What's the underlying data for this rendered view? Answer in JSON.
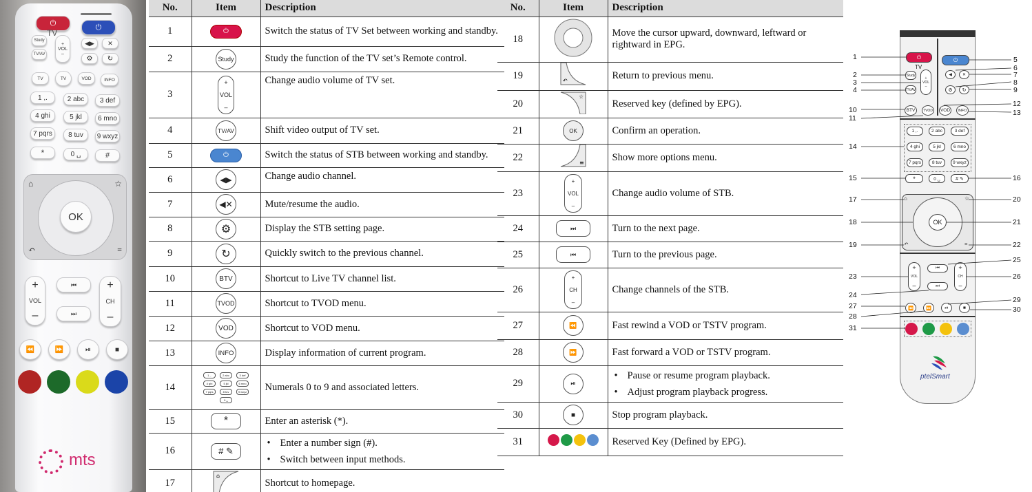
{
  "headers": {
    "no": "No.",
    "item": "Item",
    "description": "Description"
  },
  "photo": {
    "tv_label": "TV",
    "study": "Study",
    "tvav": "TV/AV",
    "vol": "VOL",
    "ch": "CH",
    "ok": "OK",
    "row_top": [
      "TV",
      "TV",
      "VOD",
      "INFO"
    ],
    "keys": [
      "1 ,.",
      "2 abc",
      "3 def",
      "4 ghi",
      "5 jkl",
      "6 mno",
      "7 pqrs",
      "8 tuv",
      "9 wxyz",
      "*",
      "0 ␣",
      "#"
    ],
    "brand": "mts"
  },
  "rows_left": [
    {
      "no": "1",
      "text": "Switch the status of TV Set between working and standby."
    },
    {
      "no": "2",
      "item": "Study",
      "text": "Study the function of the TV set’s Remote control."
    },
    {
      "no": "3",
      "item": "VOL",
      "text": "Change audio volume of TV set."
    },
    {
      "no": "4",
      "item": "TV/AV",
      "text": "Shift video output of TV set."
    },
    {
      "no": "5",
      "text": "Switch the status of STB between working and standby."
    },
    {
      "no": "6",
      "text": "Change audio channel."
    },
    {
      "no": "7",
      "text": "Mute/resume the audio."
    },
    {
      "no": "8",
      "text": "Display the STB setting page."
    },
    {
      "no": "9",
      "text": "Quickly switch to the previous channel."
    },
    {
      "no": "10",
      "item": "BTV",
      "text": "Shortcut to Live TV channel list."
    },
    {
      "no": "11",
      "item": "TVOD",
      "text": "Shortcut to TVOD menu."
    },
    {
      "no": "12",
      "item": "VOD",
      "text": "Shortcut to VOD menu."
    },
    {
      "no": "13",
      "item": "INFO",
      "text": "Display information of current program."
    },
    {
      "no": "14",
      "text": "Numerals 0 to 9 and associated letters."
    },
    {
      "no": "15",
      "item": "*",
      "text": "Enter an asterisk (*)."
    },
    {
      "no": "16",
      "item": "#",
      "bullets": [
        "Enter a number sign (#).",
        "Switch between input methods."
      ]
    },
    {
      "no": "17",
      "text": "Shortcut to homepage."
    }
  ],
  "rows_right": [
    {
      "no": "18",
      "text": "Move the cursor upward, downward, leftward or rightward in EPG."
    },
    {
      "no": "19",
      "text": "Return to previous menu."
    },
    {
      "no": "20",
      "text": "Reserved key (defined by EPG)."
    },
    {
      "no": "21",
      "item": "OK",
      "text": "Confirm an operation."
    },
    {
      "no": "22",
      "text": "Show more options menu."
    },
    {
      "no": "23",
      "item": "VOL",
      "text": "Change audio volume of STB."
    },
    {
      "no": "24",
      "text": "Turn to the next page."
    },
    {
      "no": "25",
      "text": "Turn to the previous page."
    },
    {
      "no": "26",
      "item": "CH",
      "text": "Change channels of the STB."
    },
    {
      "no": "27",
      "text": "Fast rewind a VOD or TSTV program."
    },
    {
      "no": "28",
      "text": "Fast forward a VOD or TSTV program."
    },
    {
      "no": "29",
      "bullets": [
        "Pause or resume program playback.",
        "Adjust program playback progress."
      ]
    },
    {
      "no": "30",
      "text": "Stop program playback."
    },
    {
      "no": "31",
      "text": "Reserved Key (Defined by EPG)."
    }
  ],
  "diagram": {
    "labels": [
      "1",
      "2",
      "3",
      "4",
      "5",
      "6",
      "7",
      "8",
      "9",
      "10",
      "11",
      "12",
      "13",
      "14",
      "15",
      "16",
      "17",
      "18",
      "19",
      "20",
      "21",
      "22",
      "23",
      "24",
      "25",
      "26",
      "27",
      "28",
      "29",
      "30",
      "31"
    ],
    "tv": "TV",
    "study": "Study",
    "tvav": "TV/AV",
    "vol": "VOL",
    "ch": "CH",
    "ok": "OK",
    "func": [
      "BTV",
      "TVOD",
      "VOD",
      "INFO"
    ],
    "keys": [
      "1 ,.",
      "2 abc",
      "3 def",
      "4 ghi",
      "5 jkl",
      "6 mno",
      "7 pqrs",
      "8 tuv",
      "9 wxyz"
    ],
    "brand": "ptelSmart"
  },
  "colors": {
    "red": "#d5184a",
    "green": "#1f9a47",
    "yellow": "#f4c20d",
    "blue": "#5b8ed0",
    "power_tv": "#d8144a",
    "power_stb": "#4a86d0"
  }
}
